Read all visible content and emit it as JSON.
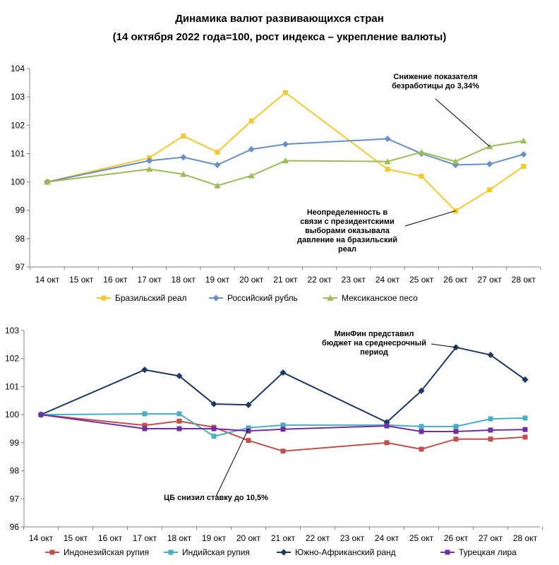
{
  "title_line1": "Динамика валют развивающихся стран",
  "title_line2": "(14 октября 2022 года=100, рост индекса – укрепление валюты)",
  "chart_data": [
    {
      "type": "line",
      "categories": [
        "14 окт",
        "15 окт",
        "16 окт",
        "17 окт",
        "18 окт",
        "19 окт",
        "20 окт",
        "21 окт",
        "22 окт",
        "23 окт",
        "24 окт",
        "25 окт",
        "26 окт",
        "27 окт",
        "28 окт"
      ],
      "ylim": [
        97,
        104
      ],
      "yticks": [
        "97",
        "98",
        "99",
        "100",
        "101",
        "102",
        "103",
        "104"
      ],
      "grid": false,
      "legend_position": "bottom",
      "series": [
        {
          "name": "Бразильский реал",
          "color": "#F2C932",
          "marker": "square",
          "values": [
            100.0,
            null,
            null,
            100.85,
            101.62,
            101.05,
            102.15,
            103.15,
            null,
            null,
            100.45,
            100.2,
            98.98,
            99.72,
            100.55
          ]
        },
        {
          "name": "Российский рубль",
          "color": "#6A8FC4",
          "marker": "diamond",
          "values": [
            100.0,
            null,
            null,
            100.75,
            100.87,
            100.6,
            101.15,
            101.33,
            null,
            null,
            101.52,
            101.0,
            100.6,
            100.63,
            100.97
          ]
        },
        {
          "name": "Мексиканское песо",
          "color": "#9CBB59",
          "marker": "triangle",
          "values": [
            100.0,
            null,
            null,
            100.45,
            100.27,
            99.87,
            100.22,
            100.75,
            null,
            null,
            100.72,
            101.05,
            100.72,
            101.25,
            101.45
          ]
        }
      ],
      "annotations": [
        {
          "lines": [
            "Снижение показателя",
            "безработицы до 3,34%"
          ],
          "target_category": "27 окт",
          "target_value": 101.25
        },
        {
          "lines": [
            "Неопределенность в",
            "связи с президентскими",
            "выборами оказывала",
            "давление на бразильский",
            "реал"
          ],
          "target_category": "26 окт",
          "target_value": 98.98
        }
      ]
    },
    {
      "type": "line",
      "categories": [
        "14 окт",
        "15 окт",
        "16 окт",
        "17 окт",
        "18 окт",
        "19 окт",
        "20 окт",
        "21 окт",
        "22 окт",
        "23 окт",
        "24 окт",
        "25 окт",
        "26 окт",
        "27 окт",
        "28 окт"
      ],
      "ylim": [
        96,
        103
      ],
      "yticks": [
        "96",
        "97",
        "98",
        "99",
        "100",
        "101",
        "102",
        "103"
      ],
      "grid": false,
      "legend_position": "bottom",
      "series": [
        {
          "name": "Индонезийская рупия",
          "color": "#C0504D",
          "marker": "square",
          "values": [
            100.0,
            null,
            null,
            99.62,
            99.77,
            99.55,
            99.08,
            98.7,
            null,
            null,
            99.0,
            98.77,
            99.13,
            99.13,
            99.2
          ]
        },
        {
          "name": "Индийская рупия",
          "color": "#4BACC6",
          "marker": "square",
          "values": [
            100.0,
            null,
            null,
            100.03,
            100.03,
            99.23,
            99.53,
            99.63,
            null,
            null,
            99.63,
            99.58,
            99.58,
            99.85,
            99.88
          ]
        },
        {
          "name": "Южно-Африканский ранд",
          "color": "#1F3864",
          "marker": "diamond",
          "values": [
            100.0,
            null,
            null,
            101.6,
            101.38,
            100.38,
            100.35,
            101.5,
            null,
            null,
            99.73,
            100.85,
            102.4,
            102.13,
            101.25
          ]
        },
        {
          "name": "Турецкая лира",
          "color": "#7030A0",
          "marker": "square",
          "values": [
            100.0,
            null,
            null,
            99.5,
            99.5,
            99.5,
            99.42,
            99.48,
            null,
            null,
            99.6,
            99.4,
            99.4,
            99.45,
            99.47
          ]
        }
      ],
      "annotations": [
        {
          "lines": [
            "МинФин представил",
            "бюджет на среднесрочный",
            "период"
          ],
          "target_category": "26 окт",
          "target_value": 102.4
        },
        {
          "lines": [
            "ЦБ снизил ставку до 10,5%"
          ],
          "target_category": "20 окт",
          "target_value": 99.5
        }
      ]
    }
  ]
}
